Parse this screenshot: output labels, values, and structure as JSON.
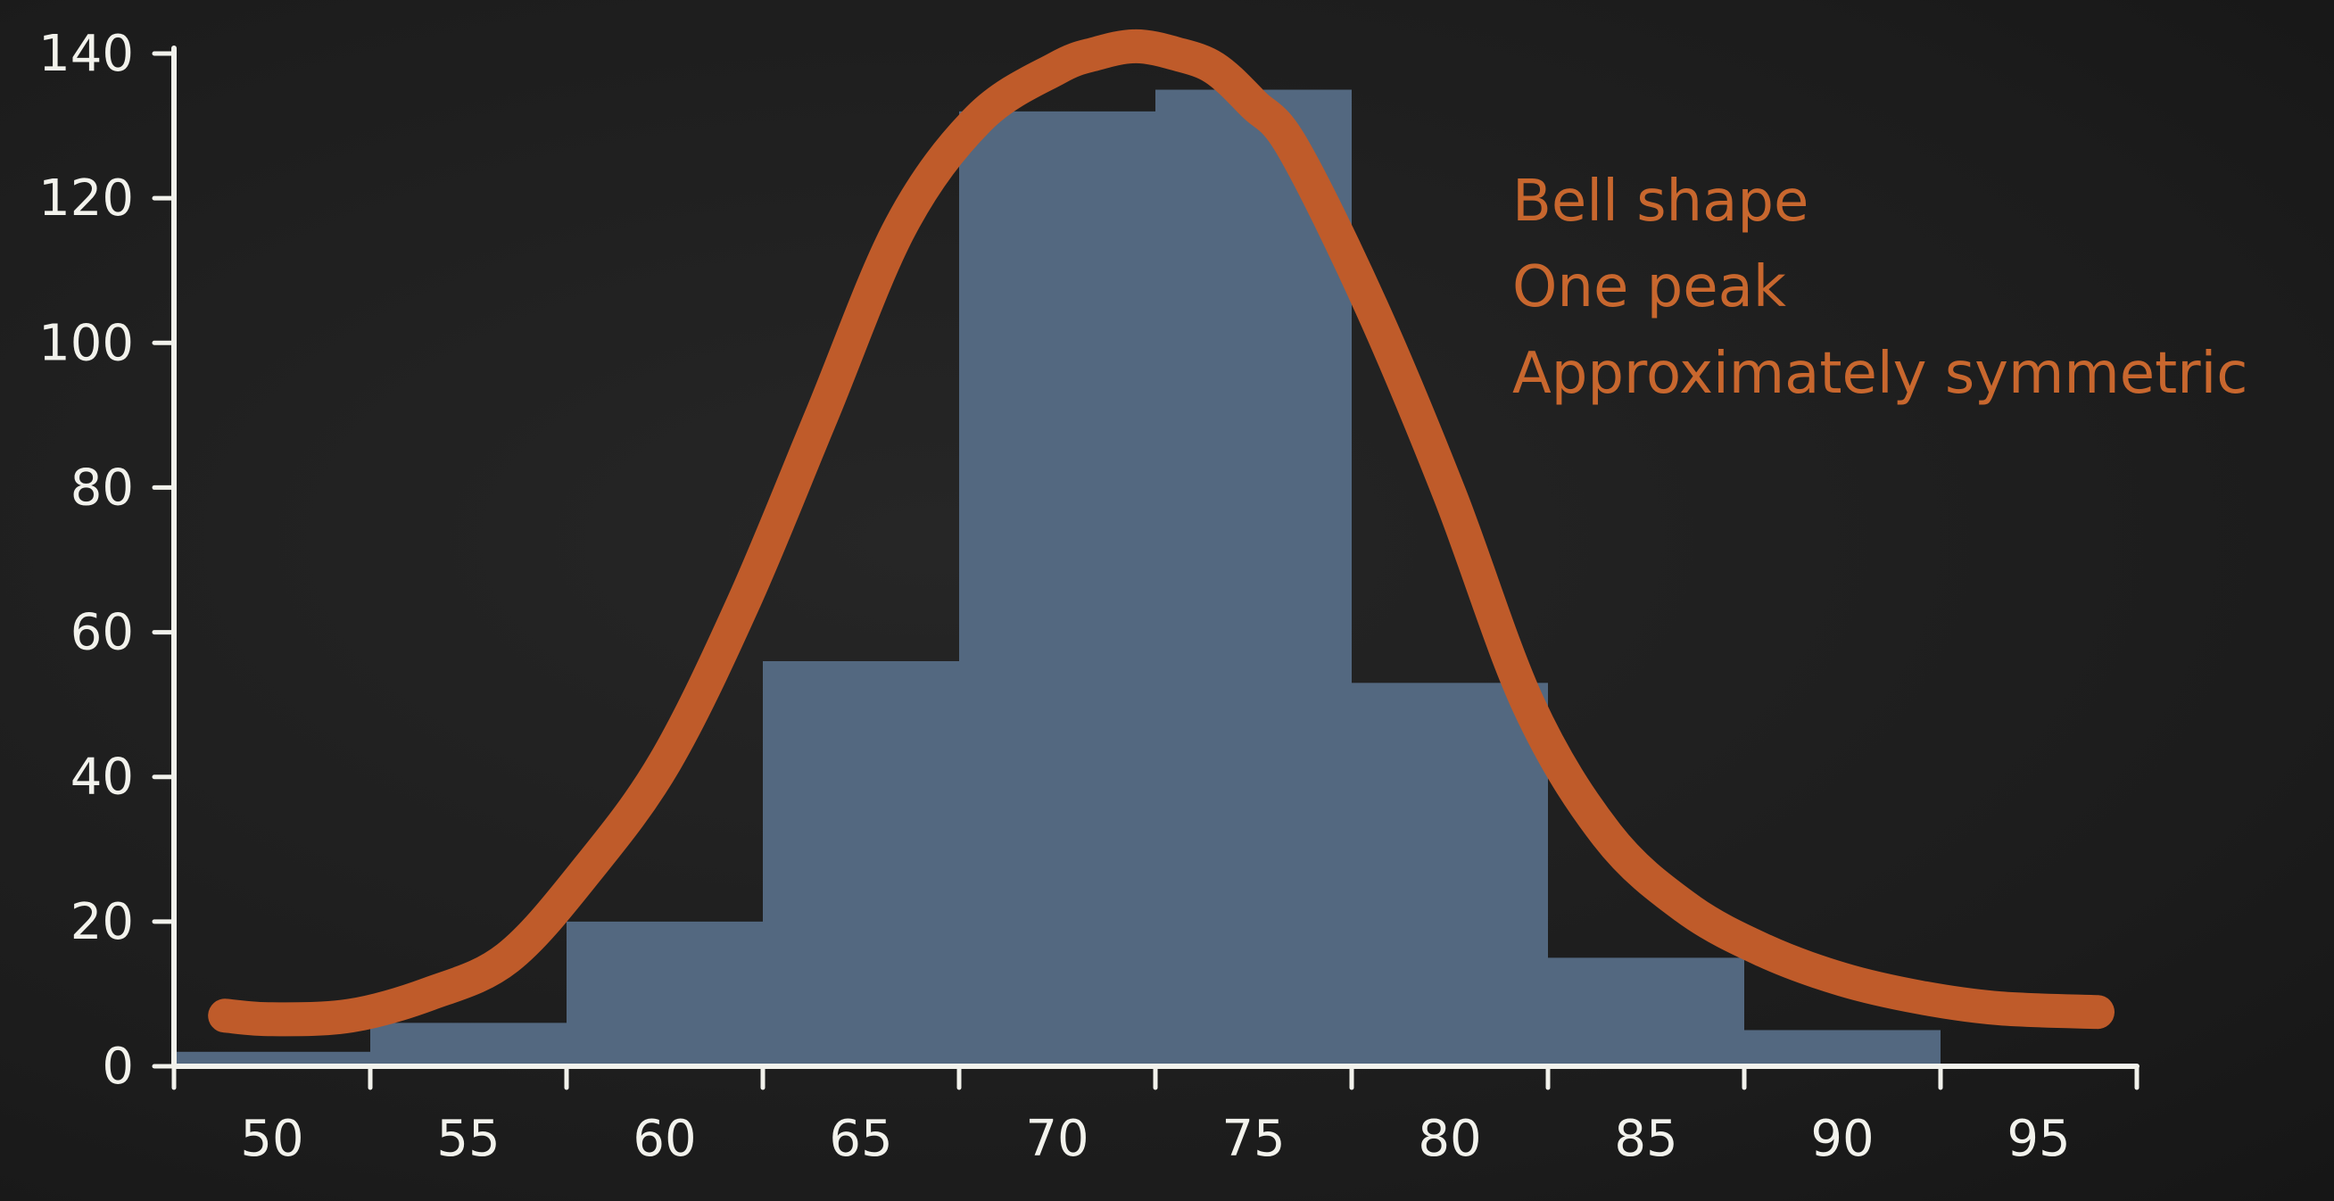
{
  "chart_data": {
    "type": "bar",
    "subtype": "histogram",
    "bin_edges": [
      47.5,
      52.5,
      57.5,
      62.5,
      67.5,
      72.5,
      77.5,
      82.5,
      87.5,
      92.5
    ],
    "x_ticks": [
      "50",
      "55",
      "60",
      "65",
      "70",
      "75",
      "80",
      "85",
      "90",
      "95"
    ],
    "x_tick_values": [
      50,
      55,
      60,
      65,
      70,
      75,
      80,
      85,
      90,
      95
    ],
    "values": [
      2,
      6,
      20,
      56,
      132,
      135,
      53,
      15,
      5
    ],
    "y_ticks": [
      "0",
      "20",
      "40",
      "60",
      "80",
      "100",
      "120",
      "140"
    ],
    "y_tick_values": [
      0,
      20,
      40,
      60,
      80,
      100,
      120,
      140
    ],
    "xlim": [
      47.5,
      97.5
    ],
    "ylim": [
      0,
      140
    ],
    "grid": false,
    "curve": {
      "type": "bell",
      "x": [
        48.8,
        50,
        52,
        54,
        56,
        58,
        60,
        62,
        64,
        66,
        68,
        70,
        71,
        72,
        73,
        74,
        75,
        76,
        78,
        80,
        82,
        84,
        86,
        88,
        90,
        92,
        94,
        96.5
      ],
      "y": [
        7,
        6.5,
        7,
        10,
        15,
        27,
        42,
        64,
        90,
        116,
        131,
        138,
        140,
        141,
        140,
        138,
        133,
        127,
        105,
        79,
        50,
        32,
        22,
        16,
        12,
        9.5,
        8,
        7.5
      ]
    },
    "annotations": [
      "Bell shape",
      "One peak",
      "Approximately symmetric"
    ],
    "colors": {
      "bars": "#536880",
      "curve": "#bf5b2a",
      "axes": "#f2f2ec",
      "annotation_text": "#c8672e",
      "background": "#1f1f1f"
    }
  }
}
